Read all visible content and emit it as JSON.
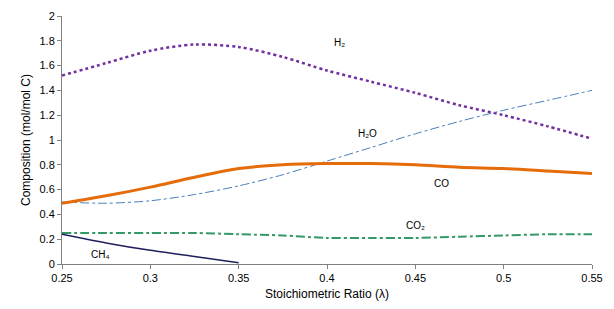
{
  "chart_data": {
    "type": "line",
    "x_label": "Stoichiometric Ratio (λ)",
    "y_label": "Composition (mol/mol C)",
    "x": [
      0.25,
      0.275,
      0.3,
      0.325,
      0.35,
      0.375,
      0.4,
      0.425,
      0.45,
      0.475,
      0.5,
      0.525,
      0.55
    ],
    "series": [
      {
        "name": "H₂",
        "color": "#7030a0",
        "line_style": "dotted",
        "values": [
          1.52,
          1.62,
          1.72,
          1.77,
          1.75,
          1.67,
          1.56,
          1.47,
          1.38,
          1.28,
          1.2,
          1.11,
          1.01
        ]
      },
      {
        "name": "H₂O",
        "color": "#4a7ebb",
        "line_style": "dashdot",
        "values": [
          0.5,
          0.49,
          0.51,
          0.56,
          0.63,
          0.72,
          0.83,
          0.94,
          1.05,
          1.15,
          1.24,
          1.32,
          1.4
        ]
      },
      {
        "name": "CO",
        "color": "#e46c0a",
        "line_style": "solid",
        "values": [
          0.49,
          0.55,
          0.62,
          0.7,
          0.77,
          0.8,
          0.81,
          0.81,
          0.8,
          0.78,
          0.77,
          0.75,
          0.73
        ]
      },
      {
        "name": "CO₂",
        "color": "#339966",
        "line_style": "dashdot",
        "values": [
          0.25,
          0.25,
          0.25,
          0.25,
          0.24,
          0.23,
          0.21,
          0.21,
          0.21,
          0.22,
          0.23,
          0.24,
          0.24
        ]
      },
      {
        "name": "CH₄",
        "color": "#1f1f5f",
        "line_style": "solid",
        "values": [
          0.24,
          0.17,
          0.11,
          0.06,
          0.01,
          null,
          null,
          null,
          null,
          null,
          null,
          null,
          null
        ]
      }
    ],
    "xlim": [
      0.25,
      0.55
    ],
    "xticks": [
      0.25,
      0.3,
      0.35,
      0.4,
      0.45,
      0.5,
      0.55
    ],
    "ylim": [
      0,
      2
    ],
    "yticks": [
      0,
      0.2,
      0.4,
      0.6,
      0.8,
      1,
      1.2,
      1.4,
      1.6,
      1.8,
      2
    ],
    "grid": false
  }
}
